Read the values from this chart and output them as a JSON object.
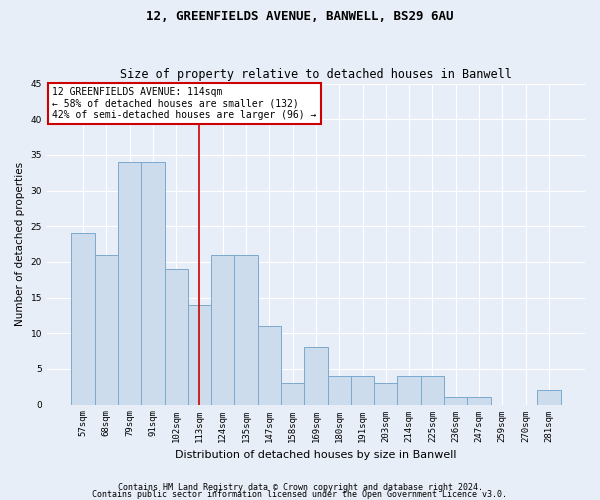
{
  "title1": "12, GREENFIELDS AVENUE, BANWELL, BS29 6AU",
  "title2": "Size of property relative to detached houses in Banwell",
  "xlabel": "Distribution of detached houses by size in Banwell",
  "ylabel": "Number of detached properties",
  "categories": [
    "57sqm",
    "68sqm",
    "79sqm",
    "91sqm",
    "102sqm",
    "113sqm",
    "124sqm",
    "135sqm",
    "147sqm",
    "158sqm",
    "169sqm",
    "180sqm",
    "191sqm",
    "203sqm",
    "214sqm",
    "225sqm",
    "236sqm",
    "247sqm",
    "259sqm",
    "270sqm",
    "281sqm"
  ],
  "values": [
    24,
    21,
    34,
    34,
    19,
    14,
    21,
    21,
    11,
    3,
    8,
    4,
    4,
    3,
    4,
    4,
    1,
    1,
    0,
    0,
    2
  ],
  "bar_color": "#ccdcec",
  "bar_edge_color": "#7aaace",
  "vline_x": 5,
  "vline_color": "#cc0000",
  "annotation_text": "12 GREENFIELDS AVENUE: 114sqm\n← 58% of detached houses are smaller (132)\n42% of semi-detached houses are larger (96) →",
  "annotation_box_facecolor": "#ffffff",
  "annotation_box_edgecolor": "#cc0000",
  "ylim": [
    0,
    45
  ],
  "yticks": [
    0,
    5,
    10,
    15,
    20,
    25,
    30,
    35,
    40,
    45
  ],
  "footer1": "Contains HM Land Registry data © Crown copyright and database right 2024.",
  "footer2": "Contains public sector information licensed under the Open Government Licence v3.0.",
  "bg_color": "#e8eef8",
  "grid_color": "#ffffff",
  "title1_fontsize": 9,
  "title2_fontsize": 8.5,
  "ylabel_fontsize": 7.5,
  "xlabel_fontsize": 8,
  "tick_fontsize": 6.5,
  "annotation_fontsize": 7,
  "footer_fontsize": 6
}
